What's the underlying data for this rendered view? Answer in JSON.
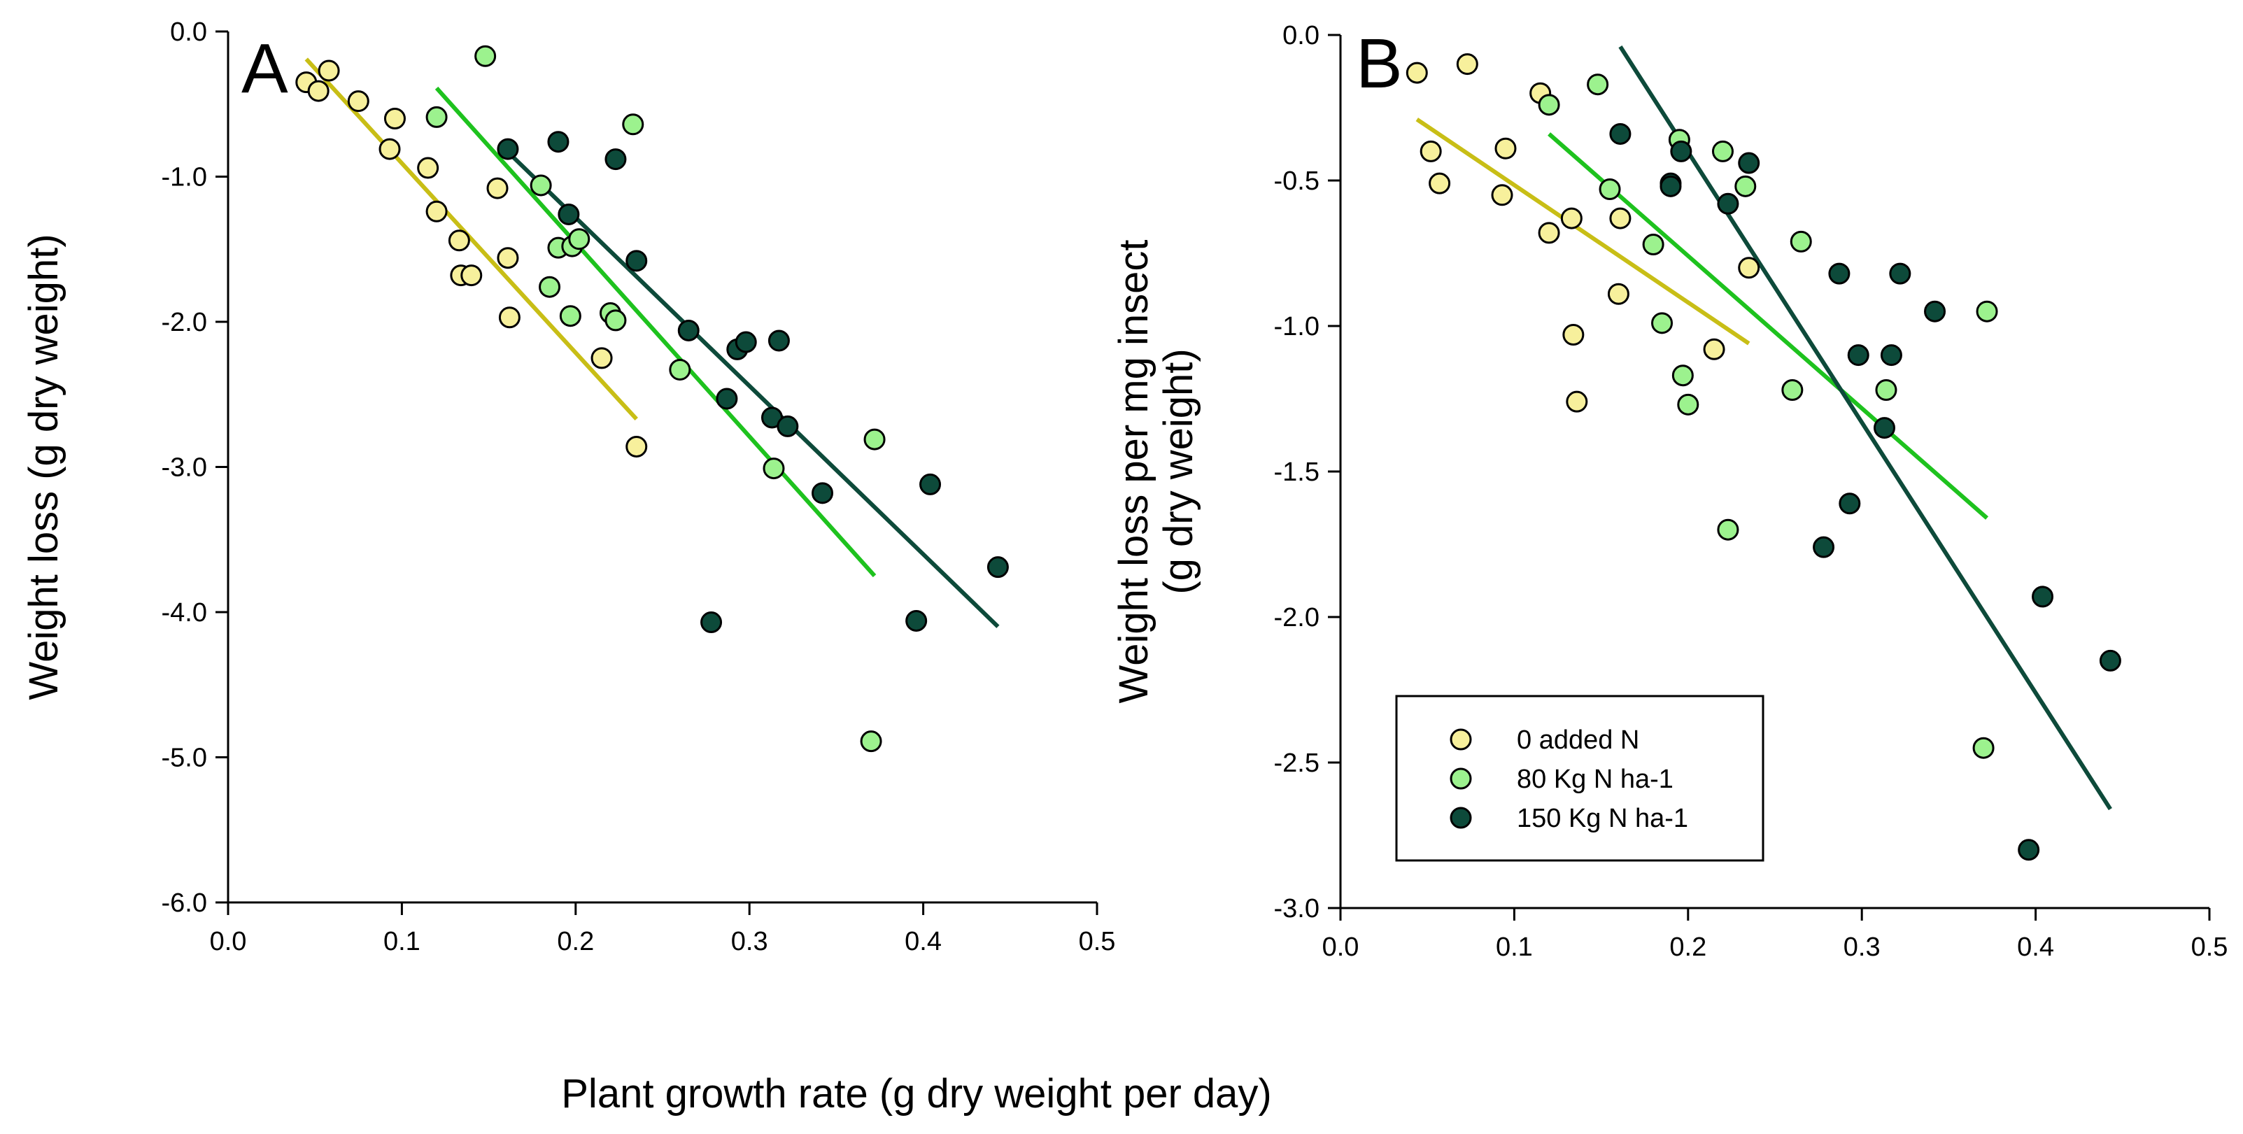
{
  "figure": {
    "shared_xlabel": "Plant growth rate (g dry weight per day)"
  },
  "chart_data": [
    {
      "type": "scatter",
      "panel": "A",
      "xlabel": "",
      "ylabel": "Weight loss (g dry weight)",
      "xlim": [
        0.0,
        0.5
      ],
      "ylim": [
        -6.0,
        0.0
      ],
      "xticks": [
        "0.0",
        "0.1",
        "0.2",
        "0.3",
        "0.4",
        "0.5"
      ],
      "yticks": [
        "0.0",
        "-1.0",
        "-2.0",
        "-3.0",
        "-4.0",
        "-5.0",
        "-6.0"
      ],
      "grid": false,
      "legend": null,
      "series": [
        {
          "name": "0 added N",
          "color": "#f7f09c",
          "line_color": "#c8be16",
          "points": [
            [
              0.045,
              -0.35
            ],
            [
              0.052,
              -0.41
            ],
            [
              0.058,
              -0.27
            ],
            [
              0.075,
              -0.48
            ],
            [
              0.093,
              -0.81
            ],
            [
              0.096,
              -0.6
            ],
            [
              0.115,
              -0.94
            ],
            [
              0.12,
              -1.24
            ],
            [
              0.133,
              -1.44
            ],
            [
              0.134,
              -1.68
            ],
            [
              0.14,
              -1.68
            ],
            [
              0.155,
              -1.08
            ],
            [
              0.161,
              -1.56
            ],
            [
              0.162,
              -1.97
            ],
            [
              0.215,
              -2.25
            ],
            [
              0.235,
              -2.86
            ]
          ],
          "fit": [
            [
              0.045,
              -0.19
            ],
            [
              0.235,
              -2.67
            ]
          ]
        },
        {
          "name": "80 Kg N ha-1",
          "color": "#9cf28e",
          "line_color": "#1ec21e",
          "points": [
            [
              0.12,
              -0.59
            ],
            [
              0.148,
              -0.17
            ],
            [
              0.18,
              -1.06
            ],
            [
              0.185,
              -1.76
            ],
            [
              0.19,
              -1.49
            ],
            [
              0.197,
              -1.96
            ],
            [
              0.198,
              -1.48
            ],
            [
              0.202,
              -1.43
            ],
            [
              0.22,
              -1.94
            ],
            [
              0.223,
              -1.99
            ],
            [
              0.233,
              -0.64
            ],
            [
              0.26,
              -2.33
            ],
            [
              0.314,
              -3.01
            ],
            [
              0.37,
              -4.89
            ],
            [
              0.372,
              -2.81
            ]
          ],
          "fit": [
            [
              0.12,
              -0.39
            ],
            [
              0.372,
              -3.75
            ]
          ]
        },
        {
          "name": "150 Kg N ha-1",
          "color": "#0d4a3a",
          "line_color": "#0d4a3a",
          "points": [
            [
              0.161,
              -0.81
            ],
            [
              0.19,
              -0.76
            ],
            [
              0.196,
              -1.26
            ],
            [
              0.223,
              -0.88
            ],
            [
              0.235,
              -1.58
            ],
            [
              0.265,
              -2.06
            ],
            [
              0.278,
              -4.07
            ],
            [
              0.287,
              -2.53
            ],
            [
              0.293,
              -2.19
            ],
            [
              0.298,
              -2.14
            ],
            [
              0.313,
              -2.66
            ],
            [
              0.317,
              -2.13
            ],
            [
              0.322,
              -2.72
            ],
            [
              0.342,
              -3.18
            ],
            [
              0.396,
              -4.06
            ],
            [
              0.404,
              -3.12
            ],
            [
              0.443,
              -3.69
            ]
          ],
          "fit": [
            [
              0.161,
              -0.83
            ],
            [
              0.443,
              -4.1
            ]
          ]
        }
      ]
    },
    {
      "type": "scatter",
      "panel": "B",
      "xlabel": "",
      "ylabel": [
        "Weight loss per mg insect",
        "(g dry weight)"
      ],
      "xlim": [
        0.0,
        0.5
      ],
      "ylim": [
        -3.0,
        0.0
      ],
      "xticks": [
        "0.0",
        "0.1",
        "0.2",
        "0.3",
        "0.4",
        "0.5"
      ],
      "yticks": [
        "0.0",
        "-0.5",
        "-1.0",
        "-1.5",
        "-2.0",
        "-2.5",
        "-3.0"
      ],
      "grid": false,
      "legend": "bottom-left",
      "series": [
        {
          "name": "0 added N",
          "color": "#f7f09c",
          "line_color": "#c8be16",
          "points": [
            [
              0.044,
              -0.13
            ],
            [
              0.052,
              -0.4
            ],
            [
              0.057,
              -0.51
            ],
            [
              0.073,
              -0.1
            ],
            [
              0.093,
              -0.55
            ],
            [
              0.095,
              -0.39
            ],
            [
              0.115,
              -0.2
            ],
            [
              0.12,
              -0.68
            ],
            [
              0.133,
              -0.63
            ],
            [
              0.134,
              -1.03
            ],
            [
              0.136,
              -1.26
            ],
            [
              0.16,
              -0.89
            ],
            [
              0.161,
              -0.63
            ],
            [
              0.215,
              -1.08
            ],
            [
              0.235,
              -0.8
            ]
          ],
          "fit": [
            [
              0.044,
              -0.29
            ],
            [
              0.235,
              -1.06
            ]
          ]
        },
        {
          "name": "80 Kg N ha-1",
          "color": "#9cf28e",
          "line_color": "#1ec21e",
          "points": [
            [
              0.12,
              -0.24
            ],
            [
              0.148,
              -0.17
            ],
            [
              0.155,
              -0.53
            ],
            [
              0.18,
              -0.72
            ],
            [
              0.185,
              -0.99
            ],
            [
              0.195,
              -0.36
            ],
            [
              0.197,
              -1.17
            ],
            [
              0.2,
              -1.27
            ],
            [
              0.22,
              -0.4
            ],
            [
              0.223,
              -1.7
            ],
            [
              0.233,
              -0.52
            ],
            [
              0.26,
              -1.22
            ],
            [
              0.265,
              -0.71
            ],
            [
              0.314,
              -1.22
            ],
            [
              0.37,
              -2.45
            ],
            [
              0.372,
              -0.95
            ]
          ],
          "fit": [
            [
              0.12,
              -0.34
            ],
            [
              0.372,
              -1.66
            ]
          ]
        },
        {
          "name": "150 Kg N ha-1",
          "color": "#0d4a3a",
          "line_color": "#0d4a3a",
          "points": [
            [
              0.161,
              -0.34
            ],
            [
              0.19,
              -0.51
            ],
            [
              0.19,
              -0.52
            ],
            [
              0.196,
              -0.4
            ],
            [
              0.223,
              -0.58
            ],
            [
              0.235,
              -0.44
            ],
            [
              0.278,
              -1.76
            ],
            [
              0.287,
              -0.82
            ],
            [
              0.293,
              -1.61
            ],
            [
              0.298,
              -1.1
            ],
            [
              0.313,
              -1.35
            ],
            [
              0.317,
              -1.1
            ],
            [
              0.322,
              -0.82
            ],
            [
              0.342,
              -0.95
            ],
            [
              0.396,
              -2.8
            ],
            [
              0.404,
              -1.93
            ],
            [
              0.443,
              -2.15
            ]
          ],
          "fit": [
            [
              0.161,
              -0.04
            ],
            [
              0.443,
              -2.66
            ]
          ]
        }
      ]
    }
  ]
}
